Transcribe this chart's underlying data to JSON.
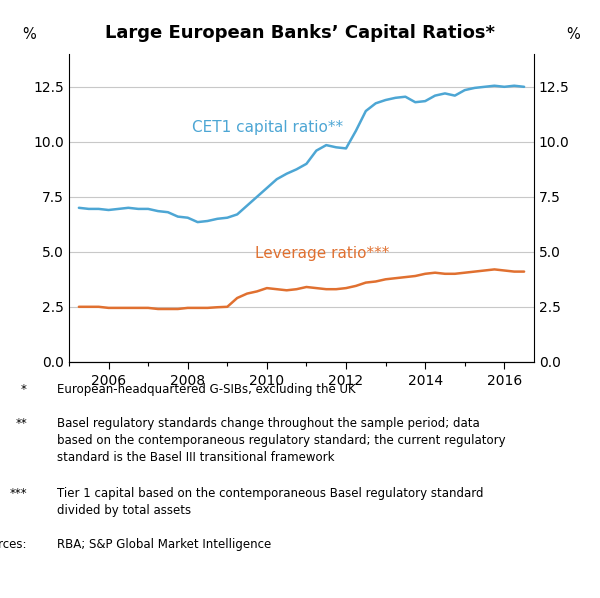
{
  "title": "Large European Banks’ Capital Ratios*",
  "cet1_x": [
    2005.25,
    2005.5,
    2005.75,
    2006.0,
    2006.25,
    2006.5,
    2006.75,
    2007.0,
    2007.25,
    2007.5,
    2007.75,
    2008.0,
    2008.25,
    2008.5,
    2008.75,
    2009.0,
    2009.25,
    2009.5,
    2009.75,
    2010.0,
    2010.25,
    2010.5,
    2010.75,
    2011.0,
    2011.25,
    2011.5,
    2011.75,
    2012.0,
    2012.25,
    2012.5,
    2012.75,
    2013.0,
    2013.25,
    2013.5,
    2013.75,
    2014.0,
    2014.25,
    2014.5,
    2014.75,
    2015.0,
    2015.25,
    2015.5,
    2015.75,
    2016.0,
    2016.25,
    2016.5
  ],
  "cet1_y": [
    7.0,
    6.95,
    6.95,
    6.9,
    6.95,
    7.0,
    6.95,
    6.95,
    6.85,
    6.8,
    6.6,
    6.55,
    6.35,
    6.4,
    6.5,
    6.55,
    6.7,
    7.1,
    7.5,
    7.9,
    8.3,
    8.55,
    8.75,
    9.0,
    9.6,
    9.85,
    9.75,
    9.7,
    10.5,
    11.4,
    11.75,
    11.9,
    12.0,
    12.05,
    11.8,
    11.85,
    12.1,
    12.2,
    12.1,
    12.35,
    12.45,
    12.5,
    12.55,
    12.5,
    12.55,
    12.5
  ],
  "leverage_x": [
    2005.25,
    2005.5,
    2005.75,
    2006.0,
    2006.25,
    2006.5,
    2006.75,
    2007.0,
    2007.25,
    2007.5,
    2007.75,
    2008.0,
    2008.25,
    2008.5,
    2008.75,
    2009.0,
    2009.25,
    2009.5,
    2009.75,
    2010.0,
    2010.25,
    2010.5,
    2010.75,
    2011.0,
    2011.25,
    2011.5,
    2011.75,
    2012.0,
    2012.25,
    2012.5,
    2012.75,
    2013.0,
    2013.25,
    2013.5,
    2013.75,
    2014.0,
    2014.25,
    2014.5,
    2014.75,
    2015.0,
    2015.25,
    2015.5,
    2015.75,
    2016.0,
    2016.25,
    2016.5
  ],
  "leverage_y": [
    2.5,
    2.5,
    2.5,
    2.45,
    2.45,
    2.45,
    2.45,
    2.45,
    2.4,
    2.4,
    2.4,
    2.45,
    2.45,
    2.45,
    2.48,
    2.5,
    2.9,
    3.1,
    3.2,
    3.35,
    3.3,
    3.25,
    3.3,
    3.4,
    3.35,
    3.3,
    3.3,
    3.35,
    3.45,
    3.6,
    3.65,
    3.75,
    3.8,
    3.85,
    3.9,
    4.0,
    4.05,
    4.0,
    4.0,
    4.05,
    4.1,
    4.15,
    4.2,
    4.15,
    4.1,
    4.1
  ],
  "cet1_color": "#4da6d4",
  "leverage_color": "#e07030",
  "cet1_label": "CET1 capital ratio**",
  "leverage_label": "Leverage ratio***",
  "ylabel_left": "%",
  "ylabel_right": "%",
  "xlim": [
    2005.0,
    2016.75
  ],
  "ylim": [
    0.0,
    14.0
  ],
  "yticks": [
    0.0,
    2.5,
    5.0,
    7.5,
    10.0,
    12.5
  ],
  "xticks": [
    2006,
    2008,
    2010,
    2012,
    2014,
    2016
  ],
  "footnote1_star": "*",
  "footnote1_text": "European-headquartered G-SIBs, excluding the UK",
  "footnote2_star": "**",
  "footnote2_text": "Basel regulatory standards change throughout the sample period; data\nbased on the contemporaneous regulatory standard; the current regulatory\nstandard is the Basel III transitional framework",
  "footnote3_star": "***",
  "footnote3_text": "Tier 1 capital based on the contemporaneous Basel regulatory standard\ndivided by total assets",
  "footnote4_star": "Sources:",
  "footnote4_text": "RBA; S&P Global Market Intelligence",
  "grid_color": "#c8c8c8",
  "line_width": 1.8,
  "title_fontsize": 13,
  "tick_fontsize": 10,
  "label_fontsize": 10.5,
  "footnote_fontsize": 8.5
}
